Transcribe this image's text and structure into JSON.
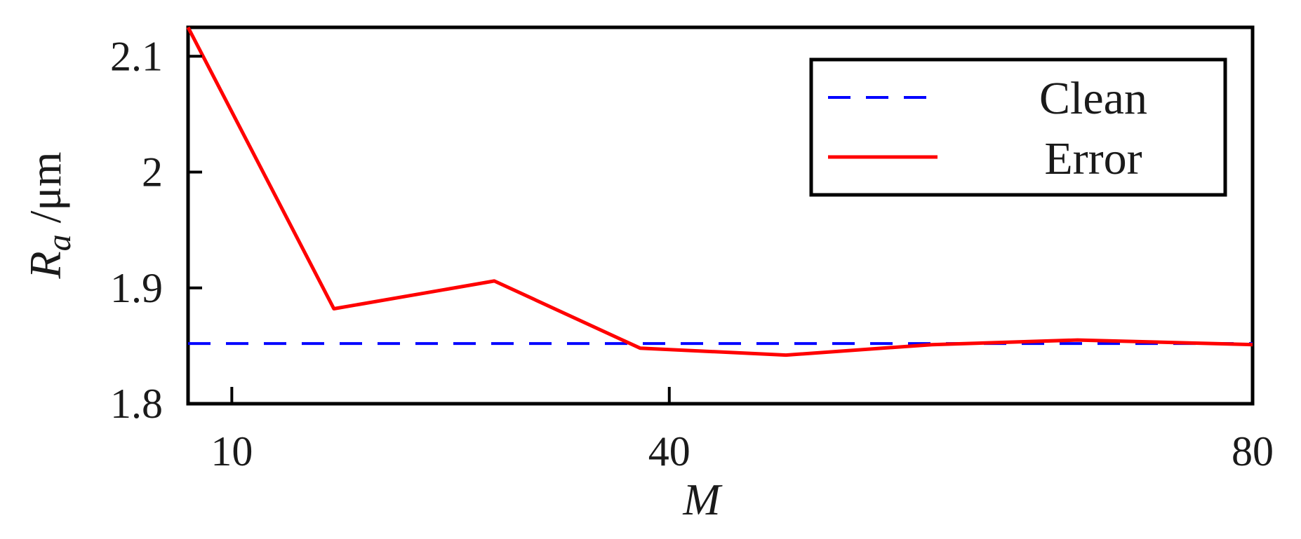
{
  "chart_data": {
    "type": "line",
    "xlabel": "M",
    "ylabel": {
      "symbol": "R",
      "subscript": "a",
      "unit": " /μm"
    },
    "xlim": [
      7,
      80
    ],
    "ylim": [
      1.8,
      2.125
    ],
    "x_ticks": [
      {
        "value": 10,
        "label": "10"
      },
      {
        "value": 40,
        "label": "40"
      },
      {
        "value": 80,
        "label": "80"
      }
    ],
    "y_ticks": [
      {
        "value": 1.8,
        "label": "1.8"
      },
      {
        "value": 1.9,
        "label": "1.9"
      },
      {
        "value": 2.0,
        "label": "2"
      },
      {
        "value": 2.1,
        "label": "2.1"
      }
    ],
    "grid": false,
    "legend": {
      "position": "top-right"
    },
    "series": [
      {
        "name": "Clean",
        "color": "#0000ff",
        "style": "dashed",
        "x": [
          7,
          80
        ],
        "y": [
          1.852,
          1.852
        ]
      },
      {
        "name": "Error",
        "color": "#ff0000",
        "style": "solid",
        "x": [
          7,
          17,
          28,
          38,
          48,
          58,
          68,
          80
        ],
        "y": [
          2.125,
          1.882,
          1.906,
          1.848,
          1.842,
          1.851,
          1.855,
          1.851
        ]
      }
    ]
  }
}
